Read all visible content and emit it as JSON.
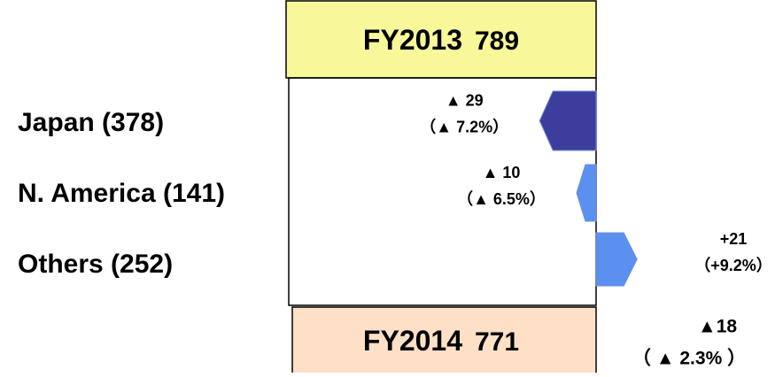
{
  "chart_data": {
    "type": "waterfall",
    "start_label": "FY2013",
    "start_value": 789,
    "end_label": "FY2014",
    "end_value": 771,
    "categories": [
      "Japan (378)",
      "N. America (141)",
      "Others (252)"
    ],
    "values": [
      -29,
      -10,
      21
    ],
    "value_labels": [
      "▲ 29",
      "▲ 10",
      "+21"
    ],
    "percent_labels": [
      "（▲ 7.2%）",
      "（▲ 6.5%）",
      "（+9.2%）"
    ],
    "colors": [
      "#3d3d9e",
      "#5b8ff0",
      "#5b8ff0"
    ],
    "total_change": -18,
    "total_change_label": "▲18",
    "total_percent_label": "（ ▲ 2.3% ）",
    "start_color": "#f8f89a",
    "end_color": "#fde0c6"
  }
}
